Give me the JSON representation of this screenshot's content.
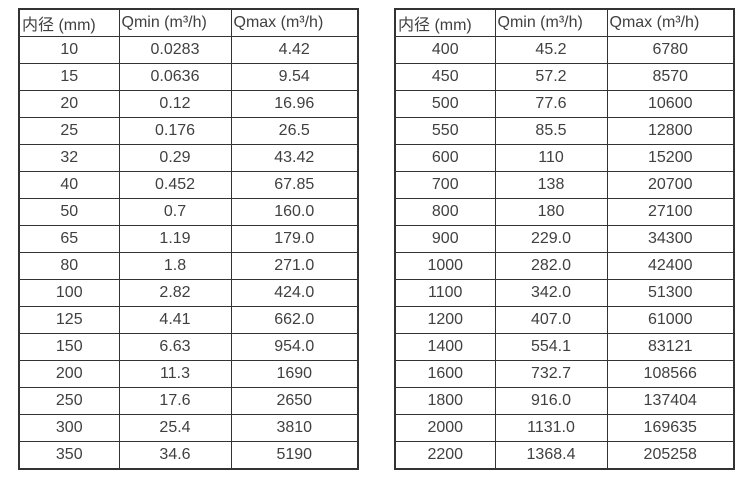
{
  "colors": {
    "background": "#ffffff",
    "border": "#333333",
    "text": "#404040"
  },
  "tables": [
    {
      "name": "small-diameter-table",
      "headers": [
        "内径 (mm)",
        "Qmin (m³/h)",
        "Qmax (m³/h)"
      ],
      "rows": [
        [
          "10",
          "0.0283",
          "4.42"
        ],
        [
          "15",
          "0.0636",
          "9.54"
        ],
        [
          "20",
          "0.12",
          "16.96"
        ],
        [
          "25",
          "0.176",
          "26.5"
        ],
        [
          "32",
          "0.29",
          "43.42"
        ],
        [
          "40",
          "0.452",
          "67.85"
        ],
        [
          "50",
          "0.7",
          "160.0"
        ],
        [
          "65",
          "1.19",
          "179.0"
        ],
        [
          "80",
          "1.8",
          "271.0"
        ],
        [
          "100",
          "2.82",
          "424.0"
        ],
        [
          "125",
          "4.41",
          "662.0"
        ],
        [
          "150",
          "6.63",
          "954.0"
        ],
        [
          "200",
          "11.3",
          "1690"
        ],
        [
          "250",
          "17.6",
          "2650"
        ],
        [
          "300",
          "25.4",
          "3810"
        ],
        [
          "350",
          "34.6",
          "5190"
        ]
      ]
    },
    {
      "name": "large-diameter-table",
      "headers": [
        "内径 (mm)",
        "Qmin (m³/h)",
        "Qmax (m³/h)"
      ],
      "rows": [
        [
          "400",
          "45.2",
          "6780"
        ],
        [
          "450",
          "57.2",
          "8570"
        ],
        [
          "500",
          "77.6",
          "10600"
        ],
        [
          "550",
          "85.5",
          "12800"
        ],
        [
          "600",
          "110",
          "15200"
        ],
        [
          "700",
          "138",
          "20700"
        ],
        [
          "800",
          "180",
          "27100"
        ],
        [
          "900",
          "229.0",
          "34300"
        ],
        [
          "1000",
          "282.0",
          "42400"
        ],
        [
          "1100",
          "342.0",
          "51300"
        ],
        [
          "1200",
          "407.0",
          "61000"
        ],
        [
          "1400",
          "554.1",
          "83121"
        ],
        [
          "1600",
          "732.7",
          "108566"
        ],
        [
          "1800",
          "916.0",
          "137404"
        ],
        [
          "2000",
          "1131.0",
          "169635"
        ],
        [
          "2200",
          "1368.4",
          "205258"
        ]
      ]
    }
  ]
}
